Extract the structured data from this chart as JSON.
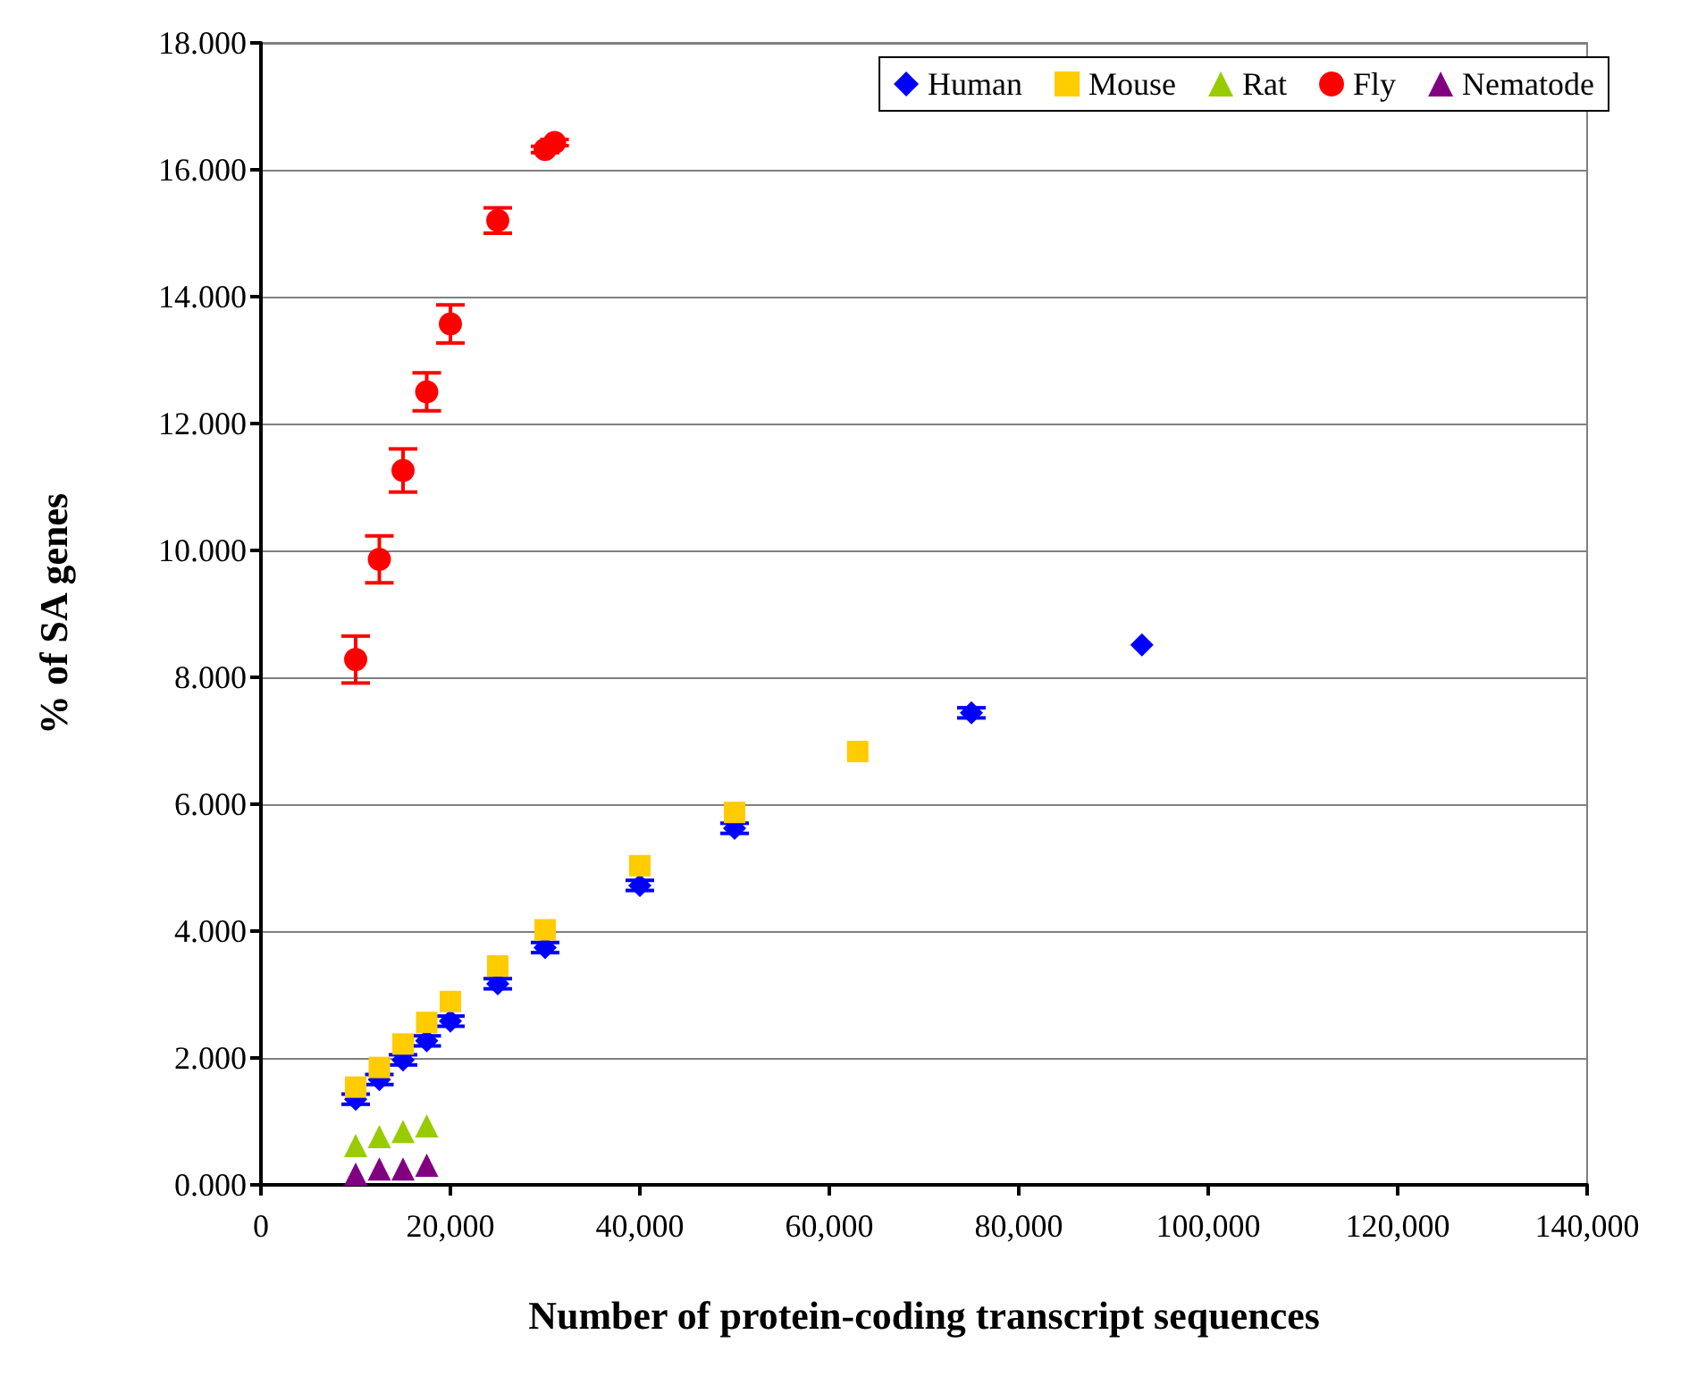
{
  "chart_data": {
    "type": "scatter",
    "xlabel": "Number of protein-coding transcript sequences",
    "ylabel": "% of SA genes",
    "xlim": [
      0,
      140000
    ],
    "xticks": [
      0,
      {
        "value": 20000,
        "label": "20,000"
      },
      {
        "value": 40000,
        "label": "40,000"
      },
      {
        "value": 60000,
        "label": "60,000"
      },
      {
        "value": 80000,
        "label": "80,000"
      },
      {
        "value": 100000,
        "label": "100,000"
      },
      {
        "value": 120000,
        "label": "120,000"
      },
      {
        "value": 140000,
        "label": "140,000"
      }
    ],
    "ylim": [
      0,
      18
    ],
    "yticks": [
      {
        "value": 0,
        "label": "0.000"
      },
      {
        "value": 2,
        "label": "2.000"
      },
      {
        "value": 4,
        "label": "4.000"
      },
      {
        "value": 6,
        "label": "6.000"
      },
      {
        "value": 8,
        "label": "8.000"
      },
      {
        "value": 10,
        "label": "10.000"
      },
      {
        "value": 12,
        "label": "12.000"
      },
      {
        "value": 14,
        "label": "14.000"
      },
      {
        "value": 16,
        "label": "16.000"
      },
      {
        "value": 18,
        "label": "18.000"
      }
    ],
    "grid": "y",
    "legend": "top right",
    "series": [
      {
        "name": "Human",
        "color": "#0000ff",
        "marker": "diamond",
        "x": [
          10000,
          12500,
          15000,
          17500,
          20000,
          25000,
          30000,
          40000,
          50000,
          75000,
          93000
        ],
        "values": [
          1.35,
          1.66,
          1.97,
          2.27,
          2.58,
          3.17,
          3.74,
          4.72,
          5.62,
          7.44,
          8.51
        ],
        "errors": [
          0.08,
          0.08,
          0.08,
          0.08,
          0.08,
          0.08,
          0.08,
          0.08,
          0.08,
          0.08,
          null
        ]
      },
      {
        "name": "Mouse",
        "color": "#ffcc00",
        "marker": "square",
        "x": [
          10000,
          12500,
          15000,
          17500,
          20000,
          25000,
          30000,
          40000,
          50000,
          63000
        ],
        "values": [
          1.54,
          1.85,
          2.22,
          2.56,
          2.89,
          3.45,
          4.02,
          5.03,
          5.87,
          6.83
        ]
      },
      {
        "name": "Rat",
        "color": "#99cc00",
        "marker": "triangle",
        "x": [
          10000,
          12500,
          15000,
          17500
        ],
        "values": [
          0.62,
          0.76,
          0.84,
          0.93
        ]
      },
      {
        "name": "Fly",
        "color": "#ff0000",
        "marker": "circle",
        "x": [
          10000,
          12500,
          15000,
          17500,
          20000,
          25000,
          30000,
          31000
        ],
        "values": [
          8.28,
          9.86,
          11.26,
          12.5,
          13.57,
          15.2,
          16.32,
          16.43
        ],
        "errors": [
          0.37,
          0.37,
          0.34,
          0.3,
          0.3,
          0.2,
          0.05,
          0.05
        ]
      },
      {
        "name": "Nematode",
        "color": "#800080",
        "marker": "triangle",
        "x": [
          10000,
          12500,
          15000,
          17500
        ],
        "values": [
          0.17,
          0.25,
          0.25,
          0.31
        ]
      }
    ]
  }
}
